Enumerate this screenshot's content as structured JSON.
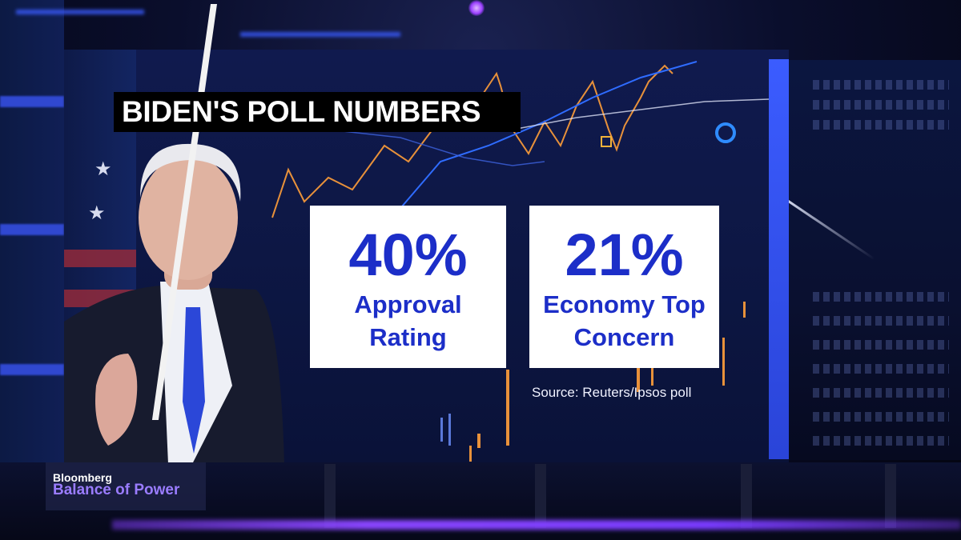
{
  "graphic": {
    "title": "BIDEN'S POLL NUMBERS",
    "stats": [
      {
        "value": "40%",
        "label_line1": "Approval",
        "label_line2": "Rating"
      },
      {
        "value": "21%",
        "label_line1": "Economy Top",
        "label_line2": "Concern"
      }
    ],
    "source": "Source: Reuters/Ipsos poll"
  },
  "branding": {
    "network": "Bloomberg",
    "show": "Balance of Power"
  },
  "colors": {
    "stat_blue": "#1c2ec8",
    "card_bg": "#ffffff",
    "title_bg": "#000000",
    "show_purple": "#9a7cff",
    "chart_orange": "#e8913a",
    "chart_blue": "#2f6cff"
  }
}
